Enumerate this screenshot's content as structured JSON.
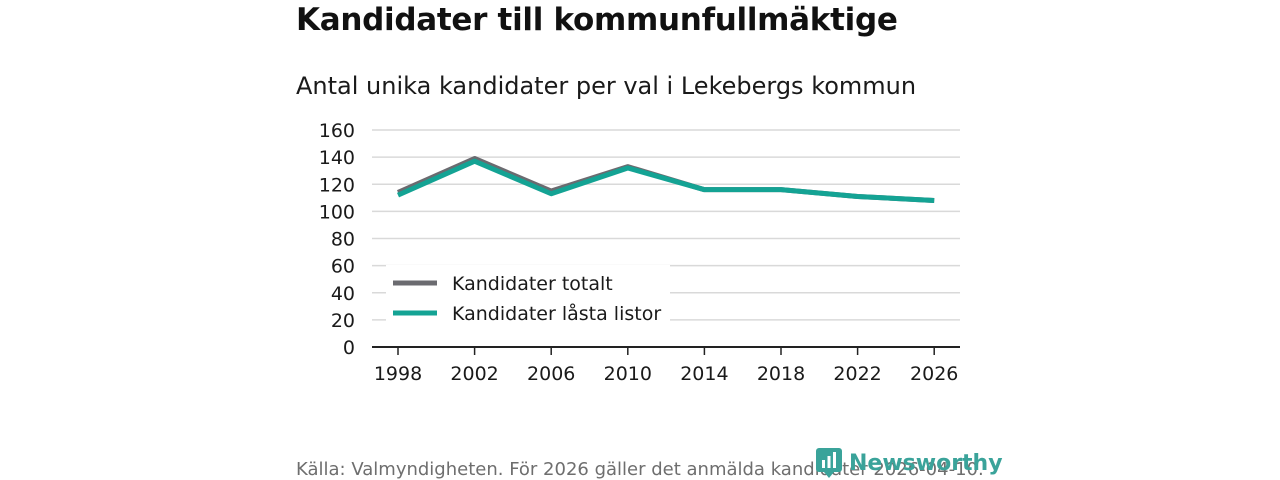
{
  "title": "Kandidater till kommunfullmäktige",
  "subtitle": "Antal unika kandidater per val i Lekebergs kommun",
  "footer": "Källa: Valmyndigheten. För 2026 gäller det anmälda kandidater 2026-04-10.",
  "logo_text": "Newsworthy",
  "colors": {
    "total": "#6b6b70",
    "locked": "#14a394",
    "grid": "#d9d9d9",
    "axis": "#222222",
    "logo": "#3aa39a"
  },
  "chart_data": {
    "type": "line",
    "categories": [
      "1998",
      "2002",
      "2006",
      "2010",
      "2014",
      "2018",
      "2022",
      "2026"
    ],
    "series": [
      {
        "name": "Kandidater totalt",
        "values": [
          114,
          139,
          115,
          133,
          116,
          116,
          111,
          108
        ]
      },
      {
        "name": "Kandidater låsta listor",
        "values": [
          112,
          137,
          113,
          132,
          116,
          116,
          111,
          108
        ]
      }
    ],
    "ylim": [
      0,
      160
    ],
    "yticks": [
      0,
      20,
      40,
      60,
      80,
      100,
      120,
      140,
      160
    ],
    "xlabel": "",
    "ylabel": "",
    "grid": true,
    "legend_position": "lower-left"
  }
}
